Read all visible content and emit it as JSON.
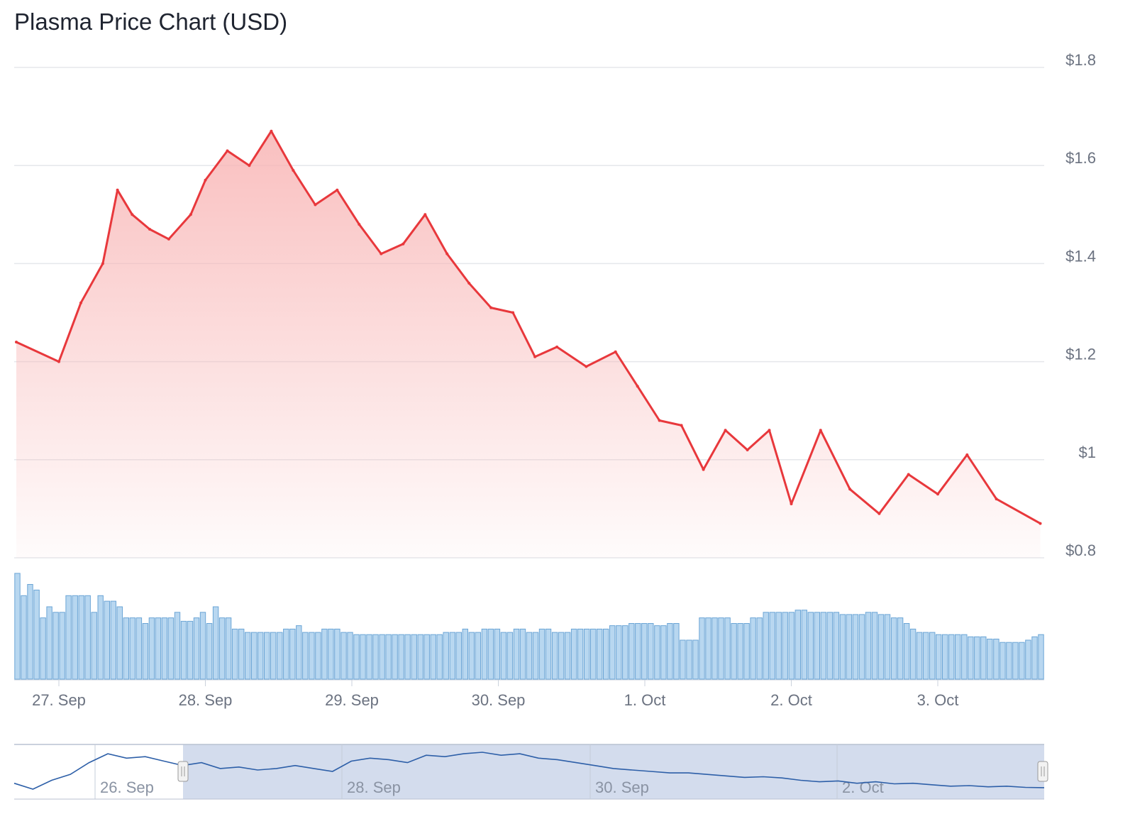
{
  "title": "Plasma Price Chart (USD)",
  "colors": {
    "price_line": "#e8383c",
    "price_fill": "#f8b4b4",
    "volume_fill": "#b8d7f0",
    "volume_stroke": "#6ba5d6",
    "grid": "#e5e7eb",
    "navigator_line": "#2d5fa8",
    "navigator_mask": "#d3dced"
  },
  "chart_data": {
    "type": "area",
    "x_unit": "days from 27. Sep 00:00",
    "yaxis": {
      "ticks": [
        "$0.8",
        "$1",
        "$1.2",
        "$1.4",
        "$1.6",
        "$1.8"
      ],
      "tick_values": [
        0.8,
        1.0,
        1.2,
        1.4,
        1.6,
        1.8
      ],
      "ylim": [
        0.8,
        1.8
      ],
      "position": "right"
    },
    "xaxis": {
      "ticks": [
        "27. Sep",
        "28. Sep",
        "29. Sep",
        "30. Sep",
        "1. Oct",
        "2. Oct",
        "3. Oct"
      ]
    },
    "grid": true,
    "series": [
      {
        "kind": "price",
        "x": [
          -0.3,
          0.0,
          0.15,
          0.3,
          0.4,
          0.5,
          0.62,
          0.75,
          0.9,
          1.0,
          1.15,
          1.3,
          1.45,
          1.6,
          1.75,
          1.9,
          2.05,
          2.2,
          2.35,
          2.5,
          2.65,
          2.8,
          2.95,
          3.1,
          3.25,
          3.4,
          3.6,
          3.8,
          3.95,
          4.1,
          4.25,
          4.4,
          4.55,
          4.7,
          4.85,
          5.0,
          5.2,
          5.4,
          5.6,
          5.8,
          6.0,
          6.2,
          6.4,
          6.7
        ],
        "y": [
          1.24,
          1.2,
          1.32,
          1.4,
          1.55,
          1.5,
          1.47,
          1.45,
          1.5,
          1.57,
          1.63,
          1.6,
          1.67,
          1.59,
          1.52,
          1.55,
          1.48,
          1.42,
          1.44,
          1.5,
          1.42,
          1.36,
          1.31,
          1.3,
          1.21,
          1.23,
          1.19,
          1.22,
          1.15,
          1.08,
          1.07,
          0.98,
          1.06,
          1.02,
          1.06,
          0.91,
          1.06,
          0.94,
          0.89,
          0.97,
          0.93,
          1.01,
          0.92,
          0.87
        ]
      },
      {
        "kind": "volume",
        "values": [
          0.95,
          0.75,
          0.85,
          0.8,
          0.55,
          0.65,
          0.6,
          0.6,
          0.75,
          0.75,
          0.75,
          0.75,
          0.6,
          0.75,
          0.7,
          0.7,
          0.65,
          0.55,
          0.55,
          0.55,
          0.5,
          0.55,
          0.55,
          0.55,
          0.55,
          0.6,
          0.52,
          0.52,
          0.55,
          0.6,
          0.5,
          0.65,
          0.55,
          0.55,
          0.45,
          0.45,
          0.42,
          0.42,
          0.42,
          0.42,
          0.42,
          0.42,
          0.45,
          0.45,
          0.48,
          0.42,
          0.42,
          0.42,
          0.45,
          0.45,
          0.45,
          0.42,
          0.42,
          0.4,
          0.4,
          0.4,
          0.4,
          0.4,
          0.4,
          0.4,
          0.4,
          0.4,
          0.4,
          0.4,
          0.4,
          0.4,
          0.4,
          0.42,
          0.42,
          0.42,
          0.45,
          0.42,
          0.42,
          0.45,
          0.45,
          0.45,
          0.42,
          0.42,
          0.45,
          0.45,
          0.42,
          0.42,
          0.45,
          0.45,
          0.42,
          0.42,
          0.42,
          0.45,
          0.45,
          0.45,
          0.45,
          0.45,
          0.45,
          0.48,
          0.48,
          0.48,
          0.5,
          0.5,
          0.5,
          0.5,
          0.48,
          0.48,
          0.5,
          0.5,
          0.35,
          0.35,
          0.35,
          0.55,
          0.55,
          0.55,
          0.55,
          0.55,
          0.5,
          0.5,
          0.5,
          0.55,
          0.55,
          0.6,
          0.6,
          0.6,
          0.6,
          0.6,
          0.62,
          0.62,
          0.6,
          0.6,
          0.6,
          0.6,
          0.6,
          0.58,
          0.58,
          0.58,
          0.58,
          0.6,
          0.6,
          0.58,
          0.58,
          0.55,
          0.55,
          0.5,
          0.45,
          0.42,
          0.42,
          0.42,
          0.4,
          0.4,
          0.4,
          0.4,
          0.4,
          0.38,
          0.38,
          0.38,
          0.36,
          0.36,
          0.33,
          0.33,
          0.33,
          0.33,
          0.35,
          0.38,
          0.4
        ]
      }
    ],
    "navigator": {
      "ticks": [
        "26. Sep",
        "28. Sep",
        "30. Sep",
        "2. Oct"
      ],
      "values": [
        0.5,
        0.3,
        0.6,
        0.8,
        1.2,
        1.5,
        1.35,
        1.4,
        1.25,
        1.1,
        1.2,
        1.0,
        1.05,
        0.95,
        1.0,
        1.1,
        1.0,
        0.9,
        1.25,
        1.35,
        1.3,
        1.2,
        1.45,
        1.4,
        1.5,
        1.55,
        1.45,
        1.5,
        1.35,
        1.3,
        1.2,
        1.1,
        1.0,
        0.95,
        0.9,
        0.85,
        0.85,
        0.8,
        0.75,
        0.7,
        0.72,
        0.68,
        0.6,
        0.55,
        0.58,
        0.5,
        0.55,
        0.48,
        0.5,
        0.45,
        0.4,
        0.42,
        0.38,
        0.4,
        0.36,
        0.35
      ],
      "selected_range": [
        "26. Sep",
        "3. Oct"
      ]
    }
  }
}
